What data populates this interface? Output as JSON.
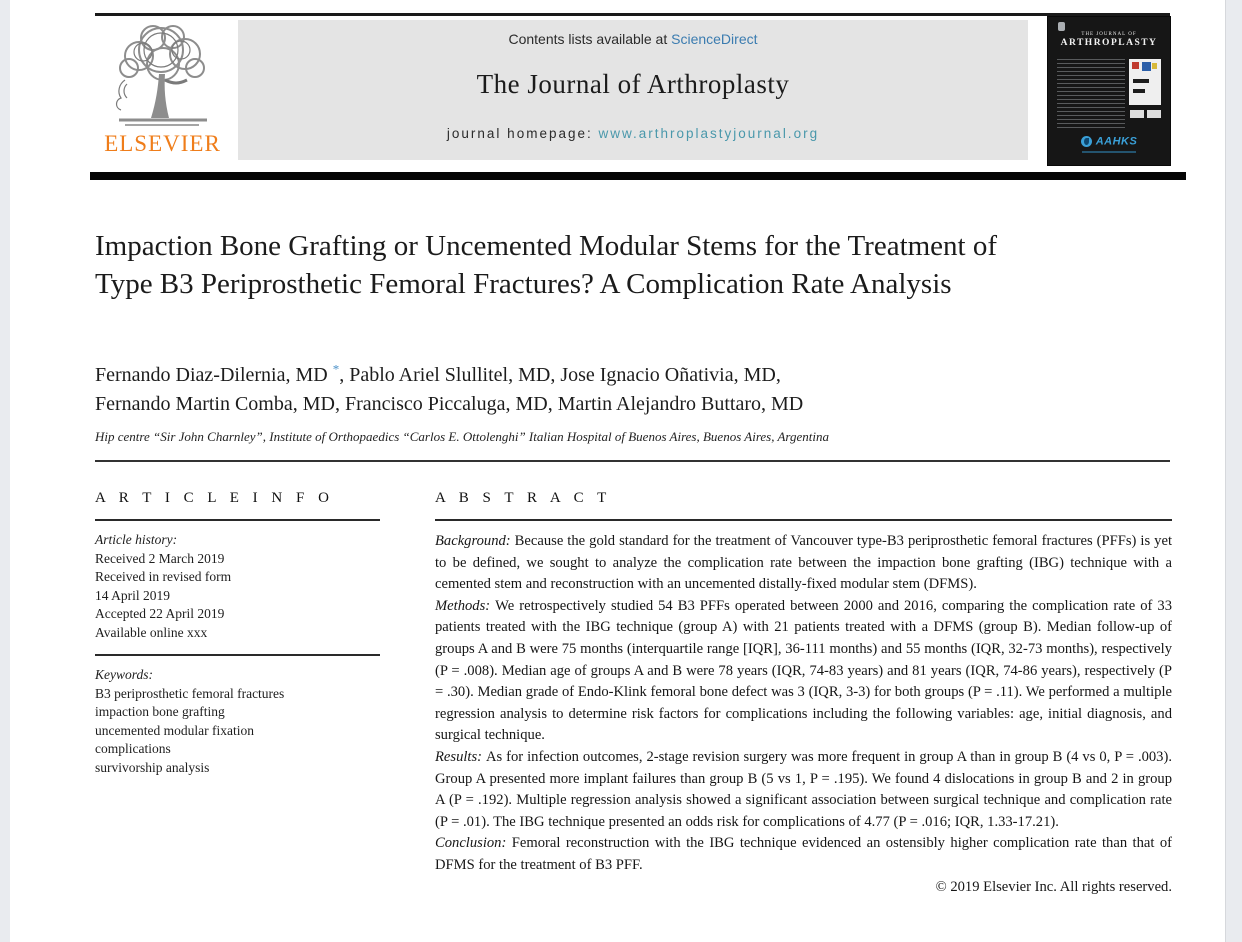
{
  "header": {
    "publisher": "ELSEVIER",
    "contents_prefix": "Contents lists available at ",
    "contents_link": "ScienceDirect",
    "journal_title": "The Journal of Arthroplasty",
    "homepage_prefix": "journal homepage: ",
    "homepage_link": "www.arthroplastyjournal.org",
    "cover": {
      "title_line1": "THE JOURNAL OF",
      "title_line2": "ARTHROPLASTY",
      "society": "AAHKS"
    },
    "colors": {
      "elsevier_orange": "#ef7d1a",
      "link_blue": "#3b7cb0",
      "link_teal": "#4a98ab",
      "aahks_blue": "#3aa0d8"
    }
  },
  "article": {
    "title": "Impaction Bone Grafting or Uncemented Modular Stems for the Treatment of Type B3 Periprosthetic Femoral Fractures? A Complication Rate Analysis",
    "authors_line1_pre": "Fernando Diaz-Dilernia, MD",
    "corresponding_mark": "*",
    "authors_line1_post": ", Pablo Ariel Slullitel, MD, Jose Ignacio Oñativia, MD,",
    "authors_line2": "Fernando Martin Comba, MD, Francisco Piccaluga, MD, Martin Alejandro Buttaro, MD",
    "affiliation": "Hip centre “Sir John Charnley”, Institute of Orthopaedics “Carlos E. Ottolenghi” Italian Hospital of Buenos Aires, Buenos Aires, Argentina"
  },
  "article_info": {
    "heading": "A R T I C L E   I N F O",
    "history_label": "Article history:",
    "history": [
      "Received 2 March 2019",
      "Received in revised form",
      "14 April 2019",
      "Accepted 22 April 2019",
      "Available online xxx"
    ],
    "keywords_label": "Keywords:",
    "keywords": [
      "B3 periprosthetic femoral fractures",
      "impaction bone grafting",
      "uncemented modular fixation",
      "complications",
      "survivorship analysis"
    ]
  },
  "abstract": {
    "heading": "A B S T R A C T",
    "sections": [
      {
        "label": "Background:",
        "text": "Because the gold standard for the treatment of Vancouver type-B3 periprosthetic femoral fractures (PFFs) is yet to be defined, we sought to analyze the complication rate between the impaction bone grafting (IBG) technique with a cemented stem and reconstruction with an uncemented distally-fixed modular stem (DFMS)."
      },
      {
        "label": "Methods:",
        "text": "We retrospectively studied 54 B3 PFFs operated between 2000 and 2016, comparing the complication rate of 33 patients treated with the IBG technique (group A) with 21 patients treated with a DFMS (group B). Median follow-up of groups A and B were 75 months (interquartile range [IQR], 36-111 months) and 55 months (IQR, 32-73 months), respectively (P = .008). Median age of groups A and B were 78 years (IQR, 74-83 years) and 81 years (IQR, 74-86 years), respectively (P = .30). Median grade of Endo-Klink femoral bone defect was 3 (IQR, 3-3) for both groups (P = .11). We performed a multiple regression analysis to determine risk factors for complications including the following variables: age, initial diagnosis, and surgical technique."
      },
      {
        "label": "Results:",
        "text": "As for infection outcomes, 2-stage revision surgery was more frequent in group A than in group B (4 vs 0, P = .003). Group A presented more implant failures than group B (5 vs 1, P = .195). We found 4 dislocations in group B and 2 in group A (P = .192). Multiple regression analysis showed a significant association between surgical technique and complication rate (P = .01). The IBG technique presented an odds risk for complications of 4.77 (P = .016; IQR, 1.33-17.21)."
      },
      {
        "label": "Conclusion:",
        "text": "Femoral reconstruction with the IBG technique evidenced an ostensibly higher complication rate than that of DFMS for the treatment of B3 PFF."
      }
    ],
    "copyright": "© 2019 Elsevier Inc. All rights reserved."
  }
}
